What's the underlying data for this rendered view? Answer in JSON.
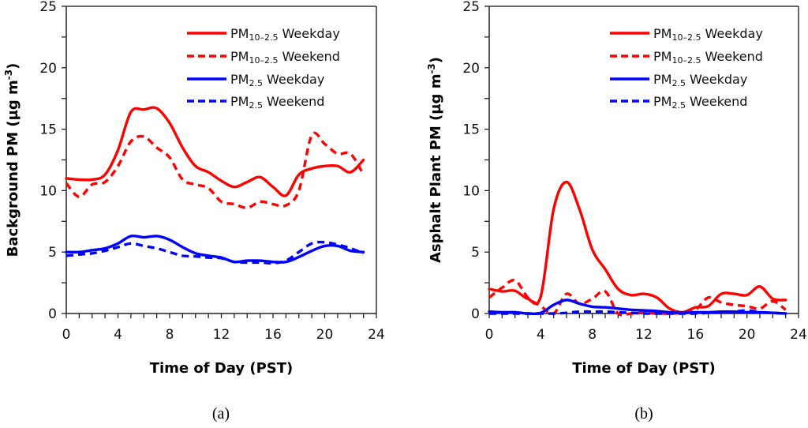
{
  "chart_data": [
    {
      "type": "line",
      "panel_label": "(a)",
      "xlabel": "Time of Day (PST)",
      "ylabel": "Background PM (µg m⁻³)",
      "ylabel_main": "Background PM (µg m",
      "ylabel_sup": "-3",
      "ylabel_close": ")",
      "xlim": [
        0,
        24
      ],
      "ylim": [
        0,
        25
      ],
      "xticks": [
        0,
        4,
        8,
        12,
        16,
        20,
        24
      ],
      "yticks": [
        0,
        5,
        10,
        15,
        20,
        25
      ],
      "x_minor_step": 1,
      "y_minor_step": 2.5,
      "grid": false,
      "legend_position": "top-right",
      "x": [
        0,
        1,
        2,
        3,
        4,
        5,
        6,
        7,
        8,
        9,
        10,
        11,
        12,
        13,
        14,
        15,
        16,
        17,
        18,
        19,
        20,
        21,
        22,
        23
      ],
      "series": [
        {
          "name": "PM10-2.5 Weekday",
          "base": "PM",
          "sub": "10–2.5",
          "suffix": " Weekday",
          "color": "#ff0000",
          "dashed": false,
          "values": [
            11.0,
            10.9,
            10.9,
            11.3,
            13.3,
            16.4,
            16.6,
            16.7,
            15.5,
            13.5,
            12.0,
            11.5,
            10.8,
            10.3,
            10.7,
            11.1,
            10.3,
            9.6,
            11.3,
            11.8,
            12.0,
            12.0,
            11.5,
            12.5
          ]
        },
        {
          "name": "PM10-2.5 Weekend",
          "base": "PM",
          "sub": "10–2.5",
          "suffix": " Weekend",
          "color": "#ff0000",
          "dashed": true,
          "values": [
            10.6,
            9.5,
            10.5,
            10.7,
            12.0,
            14.0,
            14.4,
            13.5,
            12.7,
            10.9,
            10.5,
            10.2,
            9.1,
            8.9,
            8.6,
            9.1,
            8.9,
            8.8,
            10.0,
            14.5,
            13.8,
            13.0,
            13.0,
            11.3
          ]
        },
        {
          "name": "PM2.5 Weekday",
          "base": "PM",
          "sub": "2.5",
          "suffix": " Weekday",
          "color": "#0000ff",
          "dashed": false,
          "values": [
            5.0,
            5.0,
            5.15,
            5.3,
            5.7,
            6.3,
            6.2,
            6.3,
            6.0,
            5.4,
            4.9,
            4.7,
            4.55,
            4.2,
            4.3,
            4.3,
            4.2,
            4.2,
            4.6,
            5.1,
            5.5,
            5.5,
            5.1,
            5.0
          ]
        },
        {
          "name": "PM2.5 Weekend",
          "base": "PM",
          "sub": "2.5",
          "suffix": " Weekend",
          "color": "#0000ff",
          "dashed": true,
          "values": [
            4.7,
            4.8,
            4.9,
            5.1,
            5.4,
            5.7,
            5.5,
            5.3,
            5.0,
            4.7,
            4.65,
            4.55,
            4.5,
            4.2,
            4.15,
            4.15,
            4.1,
            4.3,
            5.0,
            5.7,
            5.8,
            5.6,
            5.3,
            4.9
          ]
        }
      ]
    },
    {
      "type": "line",
      "panel_label": "(b)",
      "xlabel": "Time of Day (PST)",
      "ylabel": "Asphalt Plant PM (µg m⁻³)",
      "ylabel_main": "Asphalt Plant PM (µg m",
      "ylabel_sup": "-3",
      "ylabel_close": ")",
      "xlim": [
        0,
        24
      ],
      "ylim": [
        0,
        25
      ],
      "xticks": [
        0,
        4,
        8,
        12,
        16,
        20,
        24
      ],
      "yticks": [
        0,
        5,
        10,
        15,
        20,
        25
      ],
      "x_minor_step": 1,
      "y_minor_step": 2.5,
      "grid": false,
      "legend_position": "top-right",
      "x": [
        0,
        1,
        2,
        3,
        4,
        5,
        6,
        7,
        8,
        9,
        10,
        11,
        12,
        13,
        14,
        15,
        16,
        17,
        18,
        19,
        20,
        21,
        22,
        23
      ],
      "series": [
        {
          "name": "PM10-2.5 Weekday",
          "base": "PM",
          "sub": "10–2.5",
          "suffix": " Weekday",
          "color": "#ff0000",
          "dashed": false,
          "values": [
            2.0,
            1.8,
            1.85,
            1.2,
            1.4,
            8.5,
            10.7,
            8.5,
            5.2,
            3.6,
            2.0,
            1.5,
            1.6,
            1.3,
            0.4,
            0.1,
            0.5,
            0.6,
            1.6,
            1.6,
            1.5,
            2.2,
            1.2,
            1.1
          ]
        },
        {
          "name": "PM10-2.5 Weekend",
          "base": "PM",
          "sub": "10–2.5",
          "suffix": " Weekend",
          "color": "#ff0000",
          "dashed": true,
          "values": [
            1.3,
            2.1,
            2.7,
            1.3,
            0.6,
            0.0,
            1.6,
            0.8,
            1.2,
            1.8,
            0.0,
            0.0,
            0.05,
            0.0,
            0.0,
            0.05,
            0.3,
            1.3,
            0.9,
            0.7,
            0.6,
            0.4,
            1.0,
            0.3
          ]
        },
        {
          "name": "PM2.5 Weekday",
          "base": "PM",
          "sub": "2.5",
          "suffix": " Weekday",
          "color": "#0000ff",
          "dashed": false,
          "values": [
            0.15,
            0.1,
            0.1,
            0.0,
            0.05,
            0.7,
            1.1,
            0.8,
            0.55,
            0.5,
            0.4,
            0.3,
            0.25,
            0.2,
            0.1,
            0.05,
            0.1,
            0.1,
            0.15,
            0.15,
            0.1,
            0.1,
            0.05,
            0.0
          ]
        },
        {
          "name": "PM2.5 Weekend",
          "base": "PM",
          "sub": "2.5",
          "suffix": " Weekend",
          "color": "#0000ff",
          "dashed": true,
          "values": [
            0.0,
            0.0,
            0.0,
            0.0,
            0.0,
            0.0,
            0.05,
            0.15,
            0.15,
            0.15,
            0.1,
            0.05,
            0.0,
            0.0,
            0.0,
            0.0,
            0.0,
            0.05,
            0.1,
            0.15,
            0.25,
            0.1,
            0.05,
            0.0
          ]
        }
      ]
    }
  ]
}
